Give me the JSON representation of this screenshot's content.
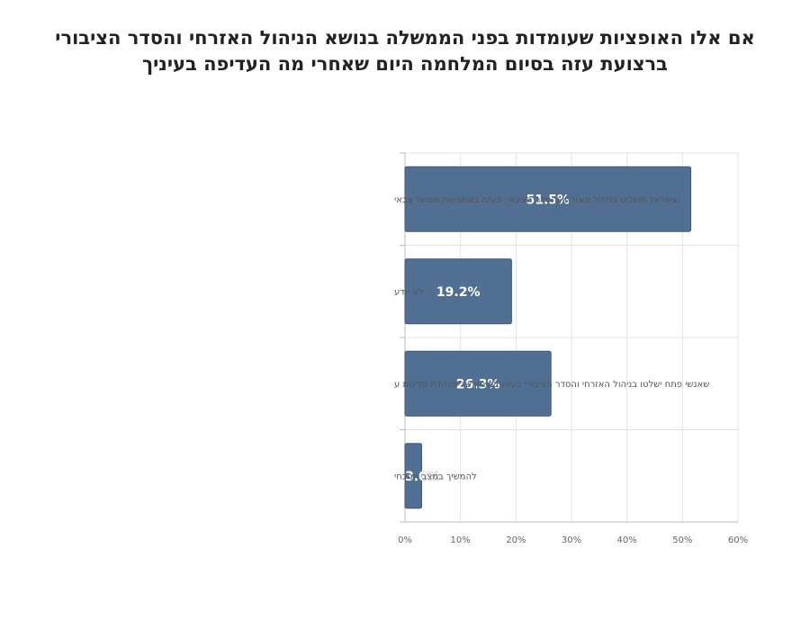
{
  "title": {
    "line1": "אם אלו האופציות שעומדות בפני הממשלה בנושא הניהול האזרחי והסדר הציבורי",
    "line2": "ברצועת עזה בסיום המלחמה היום שאחרי מה העדיפה בעיניך"
  },
  "colors": {
    "bar": "#506f93",
    "bar_edge": "#3f5a7a",
    "grid": "#e3e3e3",
    "axis": "#bbbbbb"
  },
  "chart_data": {
    "type": "bar",
    "orientation": "horizontal",
    "title": "אם אלו האופציות שעומדות בפני הממשלה בנושא הניהול האזרחי והסדר הציבורי ברצועת עזה בסיום המלחמה היום שאחרי מה העדיפה בעיניך",
    "categories": [
      "שישראל תשלוט בניהול האזרחי והסדר הציבורי בעזה באמצעות ממשל צבאי",
      "לא יודע",
      "שאנשי פתח ישלטו בניהול האזרחי והסדר הציבורי בעזה במימון של מנהלת מדינות ע",
      "להמשיך במצב הנוכחי"
    ],
    "values": [
      51.5,
      19.2,
      26.3,
      3.0
    ],
    "value_labels": [
      "51.5%",
      "19.2%",
      "26.3%",
      "3.0%"
    ],
    "xlim": [
      0,
      60
    ],
    "xticks": [
      "0%",
      "10%",
      "20%",
      "30%",
      "40%",
      "50%",
      "60%"
    ],
    "xlabel": "",
    "ylabel": "",
    "grid": true,
    "legend": "none"
  }
}
